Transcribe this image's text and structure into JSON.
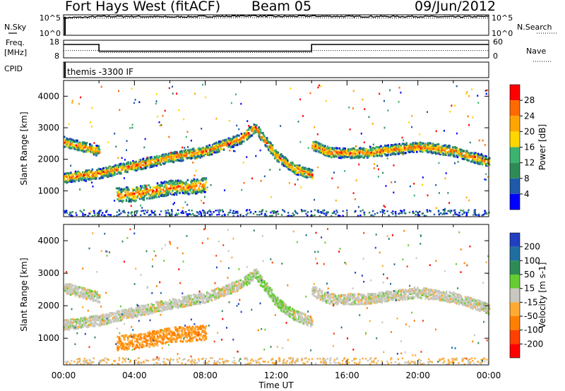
{
  "header": {
    "site": "Fort Hays West (fitACF)",
    "beam": "Beam 05",
    "date": "09/Jun/2012"
  },
  "colors": {
    "power_scale": [
      "#0000ff",
      "#1e5aa8",
      "#2e8b57",
      "#3cb371",
      "#ffd700",
      "#ffa500",
      "#ff6a00",
      "#ff0000"
    ],
    "velocity_scale": [
      "#2040c0",
      "#1e6fa0",
      "#2e8b57",
      "#66cc33",
      "#c8c8c0",
      "#ffaa33",
      "#ff8000",
      "#ff4000",
      "#ff0000"
    ]
  },
  "chart_data": [
    {
      "type": "line",
      "title": "N.Sky / N.Search",
      "left_label": "N.Sky",
      "right_label": "N.Search",
      "left_ticks": [
        "10^5",
        "10^0"
      ],
      "right_ticks": [
        "10^5",
        "10^0"
      ],
      "series": [
        {
          "name": "N.Sky",
          "style": "solid",
          "x": [
            0,
            1,
            2,
            4,
            6,
            8,
            10,
            10.5,
            12,
            14,
            16,
            18,
            20,
            22,
            24
          ],
          "y": [
            4.3,
            4.4,
            4.6,
            4.6,
            4.5,
            4.6,
            4.7,
            4.8,
            4.6,
            4.7,
            4.6,
            4.6,
            4.6,
            4.5,
            4.6
          ]
        },
        {
          "name": "N.Search",
          "style": "dotted",
          "x": [
            0,
            2,
            4,
            6,
            8,
            10,
            12,
            14,
            16,
            18,
            20,
            22,
            24
          ],
          "y": [
            4.1,
            4.2,
            4.2,
            4.3,
            4.2,
            4.3,
            4.3,
            4.3,
            4.2,
            4.2,
            4.2,
            4.2,
            4.2
          ]
        }
      ]
    },
    {
      "type": "line",
      "title": "Freq. / Nave",
      "left_label": "Freq.",
      "left_unit": "[MHz]",
      "right_label": "Nave",
      "left_ticks": [
        "18",
        "8"
      ],
      "right_ticks": [
        "60",
        "0"
      ],
      "series": [
        {
          "name": "Freq.",
          "style": "solid",
          "x": [
            0,
            2,
            2,
            14,
            14,
            24
          ],
          "y": [
            15.6,
            15.6,
            11.8,
            11.8,
            15.6,
            15.6
          ]
        },
        {
          "name": "Nave",
          "style": "dotted",
          "x": [
            0,
            2,
            2,
            14,
            14,
            24
          ],
          "y": [
            25,
            25,
            18,
            18,
            25,
            25
          ]
        }
      ]
    },
    {
      "type": "table",
      "label": "CPID",
      "value": "themis -3300 IF"
    },
    {
      "type": "heatmap",
      "title": "Power",
      "ylabel": "Slant Range [km]",
      "xlim": [
        0,
        24
      ],
      "ylim": [
        180,
        4500
      ],
      "yticks": [
        "1000",
        "2000",
        "3000",
        "4000"
      ],
      "colorbar_label": "Power [dB]",
      "colorbar_ticks": [
        "4",
        "8",
        "12",
        "16",
        "20",
        "24",
        "28"
      ],
      "features": [
        {
          "name": "ground scatter band",
          "x": [
            0,
            2,
            4,
            6,
            8,
            10,
            10.8,
            12,
            13,
            14
          ],
          "y": [
            1400,
            1550,
            1800,
            2050,
            2250,
            2650,
            3000,
            2100,
            1700,
            1500
          ]
        },
        {
          "name": "early band",
          "x": [
            0,
            1,
            2
          ],
          "y": [
            2550,
            2400,
            2250
          ]
        },
        {
          "name": "lower echo",
          "x": [
            3,
            4,
            5,
            6,
            7,
            8
          ],
          "y": [
            850,
            900,
            980,
            1100,
            1120,
            1180
          ]
        },
        {
          "name": "late band",
          "x": [
            14,
            15,
            17,
            20,
            22,
            24
          ],
          "y": [
            2450,
            2200,
            2200,
            2400,
            2250,
            1900
          ]
        }
      ]
    },
    {
      "type": "heatmap",
      "title": "Velocity",
      "ylabel": "Slant Range [km]",
      "xlabel": "Time UT",
      "xlim": [
        0,
        24
      ],
      "ylim": [
        180,
        4500
      ],
      "xticks": [
        "00:00",
        "04:00",
        "08:00",
        "12:00",
        "16:00",
        "20:00",
        "00:00"
      ],
      "yticks": [
        "1000",
        "2000",
        "3000",
        "4000"
      ],
      "colorbar_label": "Velocity [m s-1]",
      "colorbar_ticks": [
        "200",
        "100",
        "50",
        "15",
        "-15",
        "-50",
        "-100",
        "-200"
      ],
      "features": [
        {
          "name": "ground scatter band",
          "x": [
            0,
            2,
            4,
            6,
            8,
            10,
            10.8,
            12,
            13,
            14
          ],
          "y": [
            1400,
            1550,
            1800,
            2050,
            2250,
            2650,
            3000,
            2100,
            1700,
            1500
          ]
        },
        {
          "name": "early band",
          "x": [
            0,
            1,
            2
          ],
          "y": [
            2550,
            2400,
            2250
          ]
        },
        {
          "name": "lower echo",
          "x": [
            3,
            4,
            5,
            6,
            7,
            8
          ],
          "y": [
            850,
            900,
            980,
            1100,
            1120,
            1180
          ]
        },
        {
          "name": "late band",
          "x": [
            14,
            15,
            17,
            20,
            22,
            24
          ],
          "y": [
            2450,
            2200,
            2200,
            2400,
            2250,
            1900
          ]
        }
      ]
    }
  ]
}
